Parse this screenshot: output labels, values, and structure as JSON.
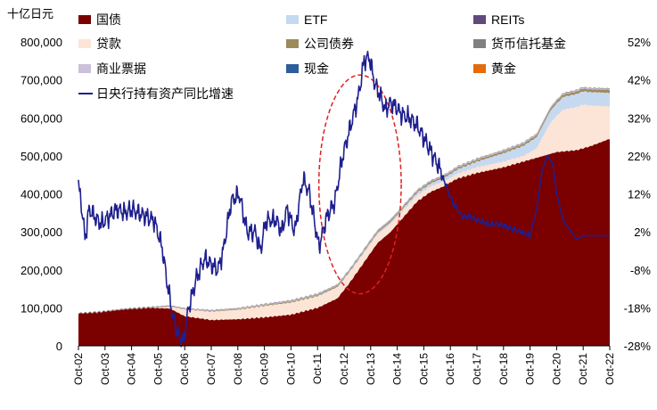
{
  "chart_data": {
    "type": "area",
    "title": "",
    "ylabel": "十亿日元",
    "y2label": "",
    "ylim": [
      0,
      800000
    ],
    "y2lim": [
      -28,
      52
    ],
    "y_ticks": [
      "800,000",
      "700,000",
      "600,000",
      "500,000",
      "400,000",
      "300,000",
      "200,000",
      "100,000",
      "0"
    ],
    "y_tick_values": [
      800000,
      700000,
      600000,
      500000,
      400000,
      300000,
      200000,
      100000,
      0
    ],
    "y2_ticks": [
      "52%",
      "42%",
      "32%",
      "22%",
      "12%",
      "2%",
      "-8%",
      "-18%",
      "-28%"
    ],
    "y2_tick_values": [
      52,
      42,
      32,
      22,
      12,
      2,
      -8,
      -18,
      -28
    ],
    "x_ticks": [
      "Oct-02",
      "Oct-03",
      "Oct-04",
      "Oct-05",
      "Oct-06",
      "Oct-07",
      "Oct-08",
      "Oct-09",
      "Oct-10",
      "Oct-11",
      "Oct-12",
      "Oct-13",
      "Oct-14",
      "Oct-15",
      "Oct-16",
      "Oct-17",
      "Oct-18",
      "Oct-19",
      "Oct-20",
      "Oct-21",
      "Oct-22"
    ],
    "x_tick_years": [
      2002.75,
      2003.75,
      2004.75,
      2005.75,
      2006.75,
      2007.75,
      2008.75,
      2009.75,
      2010.75,
      2011.75,
      2012.75,
      2013.75,
      2014.75,
      2015.75,
      2016.75,
      2017.75,
      2018.75,
      2019.75,
      2020.75,
      2021.75,
      2022.75
    ],
    "x_range": [
      2002.75,
      2022.75
    ],
    "legend": [
      {
        "name": "国债",
        "color": "#7B0000",
        "kind": "box"
      },
      {
        "name": "ETF",
        "color": "#C6D9F1",
        "kind": "box"
      },
      {
        "name": "REITs",
        "color": "#604A7B",
        "kind": "box"
      },
      {
        "name": "贷款",
        "color": "#FCE4D6",
        "kind": "box"
      },
      {
        "name": "公司债券",
        "color": "#9C8B5A",
        "kind": "box"
      },
      {
        "name": "货币信托基金",
        "color": "#808080",
        "kind": "box"
      },
      {
        "name": "商业票据",
        "color": "#CCC0DA",
        "kind": "box"
      },
      {
        "name": "现金",
        "color": "#2E5D9A",
        "kind": "box"
      },
      {
        "name": "黄金",
        "color": "#E36C09",
        "kind": "box"
      },
      {
        "name": "日央行持有资产同比增速",
        "color": "#1F1F8F",
        "kind": "line"
      }
    ],
    "stacked_series": [
      {
        "name": "国债",
        "color": "#7B0000",
        "x": [
          2002.75,
          2003.5,
          2004.5,
          2005.5,
          2006.2,
          2006.75,
          2007.75,
          2008.75,
          2009.75,
          2010.75,
          2011.75,
          2012.5,
          2013.0,
          2013.5,
          2014.0,
          2014.5,
          2015.0,
          2015.5,
          2016.0,
          2016.5,
          2017.0,
          2017.75,
          2018.75,
          2019.75,
          2020.5,
          2020.75,
          2021.5,
          2022.0,
          2022.75
        ],
        "values": [
          85000,
          88000,
          96000,
          100000,
          98000,
          78000,
          68000,
          70000,
          75000,
          82000,
          100000,
          125000,
          170000,
          220000,
          270000,
          300000,
          340000,
          380000,
          405000,
          420000,
          440000,
          455000,
          470000,
          490000,
          505000,
          510000,
          515000,
          525000,
          545000
        ]
      },
      {
        "name": "贷款",
        "color": "#FCE4D6",
        "x": [
          2002.75,
          2005.5,
          2006.2,
          2006.75,
          2007.75,
          2008.75,
          2009.75,
          2010.75,
          2011.75,
          2012.75,
          2013.75,
          2014.75,
          2015.75,
          2016.75,
          2017.75,
          2018.75,
          2019.5,
          2020.0,
          2020.5,
          2021.0,
          2021.75,
          2022.75
        ],
        "values": [
          0,
          0,
          5000,
          18000,
          22000,
          25000,
          30000,
          32000,
          30000,
          28000,
          24000,
          20000,
          15000,
          12000,
          15000,
          15000,
          15000,
          25000,
          80000,
          110000,
          115000,
          85000
        ]
      },
      {
        "name": "ETF",
        "color": "#C6D9F1",
        "x": [
          2002.75,
          2010.75,
          2012.75,
          2014.75,
          2016.75,
          2017.75,
          2018.75,
          2019.75,
          2020.75,
          2021.75,
          2022.75
        ],
        "values": [
          0,
          0,
          2000,
          5000,
          10000,
          15000,
          22000,
          28000,
          33000,
          35000,
          36000
        ]
      },
      {
        "name": "公司债券",
        "color": "#9C8B5A",
        "x": [
          2002.75,
          2009.5,
          2010.75,
          2012.75,
          2014.75,
          2016.75,
          2018.75,
          2020.75,
          2022.75
        ],
        "values": [
          0,
          2000,
          3000,
          3500,
          4000,
          4500,
          5000,
          6000,
          8000
        ]
      },
      {
        "name": "商业票据",
        "color": "#CCC0DA",
        "x": [
          2002.75,
          2009.5,
          2012.75,
          2016.75,
          2020.75,
          2022.75
        ],
        "values": [
          0,
          1500,
          2000,
          2000,
          2500,
          2500
        ]
      },
      {
        "name": "货币信托基金",
        "color": "#808080",
        "x": [
          2002.75,
          2022.75
        ],
        "values": [
          1000,
          1000
        ]
      },
      {
        "name": "REITs",
        "color": "#604A7B",
        "x": [
          2002.75,
          2022.75
        ],
        "values": [
          500,
          600
        ]
      }
    ],
    "line_series": {
      "name": "日央行持有资产同比增速",
      "axis": "right",
      "color": "#1F1F8F",
      "x": [
        2002.75,
        2002.85,
        2003.0,
        2003.15,
        2003.35,
        2003.6,
        2003.9,
        2004.2,
        2004.5,
        2004.75,
        2005.0,
        2005.3,
        2005.6,
        2005.9,
        2006.1,
        2006.3,
        2006.5,
        2006.7,
        2006.9,
        2007.2,
        2007.5,
        2007.8,
        2008.0,
        2008.2,
        2008.5,
        2008.8,
        2009.1,
        2009.4,
        2009.6,
        2009.8,
        2010.0,
        2010.2,
        2010.4,
        2010.6,
        2010.9,
        2011.2,
        2011.45,
        2011.55,
        2011.8,
        2012.1,
        2012.4,
        2012.7,
        2013.0,
        2013.3,
        2013.5,
        2013.7,
        2013.9,
        2014.1,
        2014.3,
        2014.5,
        2014.7,
        2014.9,
        2015.2,
        2015.5,
        2015.8,
        2016.1,
        2016.4,
        2016.7,
        2016.9,
        2017.2,
        2017.5,
        2017.8,
        2018.2,
        2018.6,
        2019.0,
        2019.4,
        2019.75,
        2020.0,
        2020.2,
        2020.4,
        2020.6,
        2020.75,
        2021.0,
        2021.3,
        2021.5,
        2021.75,
        2022.2,
        2022.75
      ],
      "values": [
        14,
        10,
        0,
        8,
        6,
        4,
        6,
        8,
        7,
        8,
        7,
        6,
        5,
        -2,
        -12,
        -20,
        -25,
        -27,
        -18,
        -10,
        -5,
        -7,
        -8,
        -3,
        10,
        12,
        2,
        2,
        -3,
        5,
        5,
        5,
        2,
        8,
        2,
        16,
        12,
        8,
        -2,
        6,
        10,
        22,
        30,
        38,
        47,
        48,
        41,
        38,
        34,
        36,
        35,
        33,
        32,
        30,
        26,
        22,
        18,
        12,
        9,
        6,
        6,
        5,
        4,
        4,
        3,
        2,
        1,
        8,
        18,
        22,
        20,
        12,
        5,
        2,
        0,
        1,
        1,
        1
      ]
    },
    "annotation": {
      "type": "dashed-ellipse",
      "color": "#E02020",
      "x_center": 2013.35,
      "y_center": 425000,
      "x_radius": 1.55,
      "y_radius": 288000
    }
  }
}
